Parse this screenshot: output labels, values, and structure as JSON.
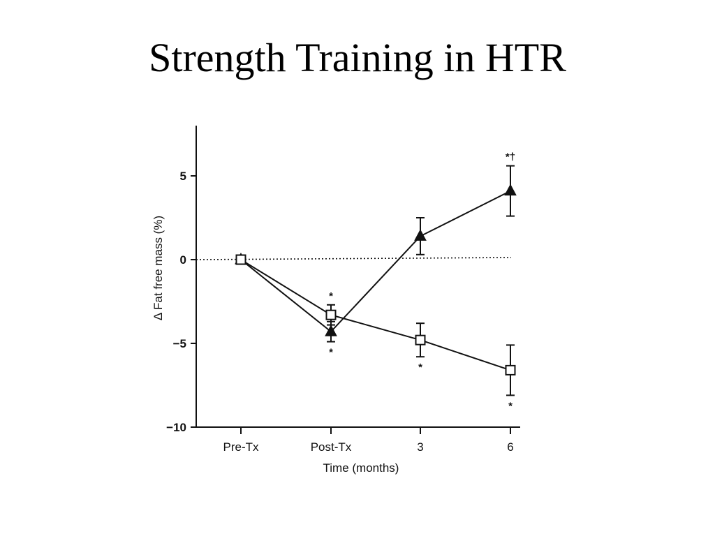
{
  "slide": {
    "title": "Strength Training in HTR"
  },
  "chart_data": {
    "type": "line",
    "title": "",
    "xlabel": "Time (months)",
    "ylabel": "Δ Fat free mass (%)",
    "categories": [
      "Pre-Tx",
      "Post-Tx",
      "3",
      "6"
    ],
    "ylim": [
      -10,
      8
    ],
    "yticks": [
      5,
      0,
      -5,
      -10
    ],
    "ytick_labels": [
      "5",
      "0",
      "−5",
      "−10"
    ],
    "reference_line": 0,
    "grid": false,
    "legend": "none",
    "series": [
      {
        "marker": "filled-triangle",
        "color": "#111111",
        "values": [
          0,
          -4.3,
          1.4,
          4.1
        ],
        "errors": [
          0,
          0.6,
          1.1,
          1.5
        ],
        "annotations": [
          "",
          "*",
          "",
          "*†"
        ]
      },
      {
        "marker": "open-square",
        "color": "#111111",
        "values": [
          0,
          -3.3,
          -4.8,
          -6.6
        ],
        "errors": [
          0,
          0.6,
          1.0,
          1.5
        ],
        "annotations": [
          "",
          "*",
          "*",
          "*"
        ]
      }
    ]
  }
}
